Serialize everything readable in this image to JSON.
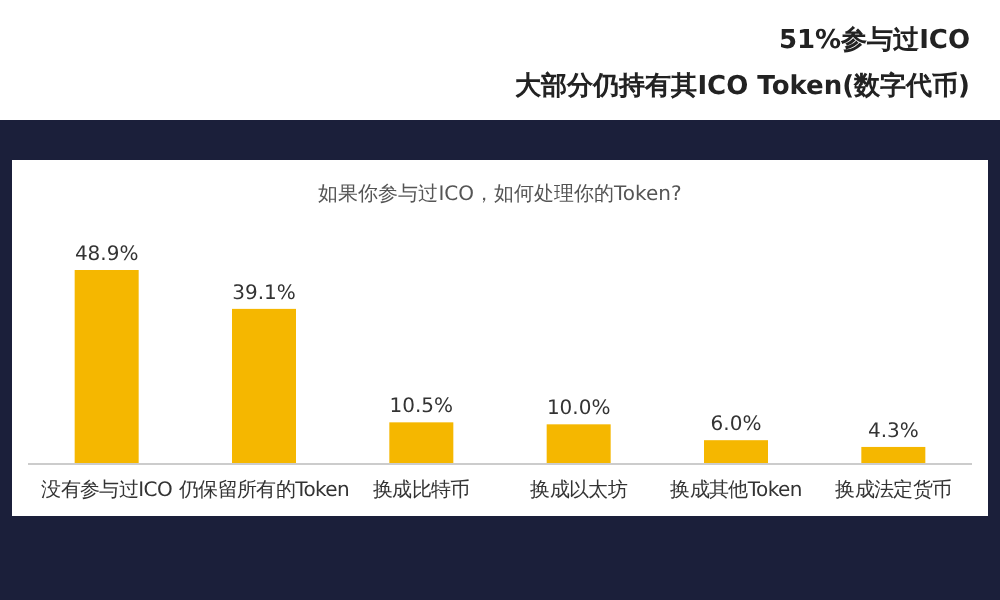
{
  "chart_data": {
    "type": "bar",
    "title": "51%参与过ICO",
    "subtitle": "大部分仍持有其ICO Token(数字代币)",
    "annotations": [
      "如果你参与过ICO，如何处理你的Token?"
    ],
    "categories": [
      "没有参与过ICO",
      "仍保留所有的Token",
      "换成比特币",
      "换成以太坊",
      "换成其他Token",
      "换成法定货币"
    ],
    "values": [
      48.9,
      39.1,
      10.5,
      10.0,
      6.0,
      4.3
    ],
    "value_labels": [
      "48.9%",
      "39.1%",
      "10.5%",
      "10.0%",
      "6.0%",
      "4.3%"
    ],
    "color": "#f5b700"
  }
}
